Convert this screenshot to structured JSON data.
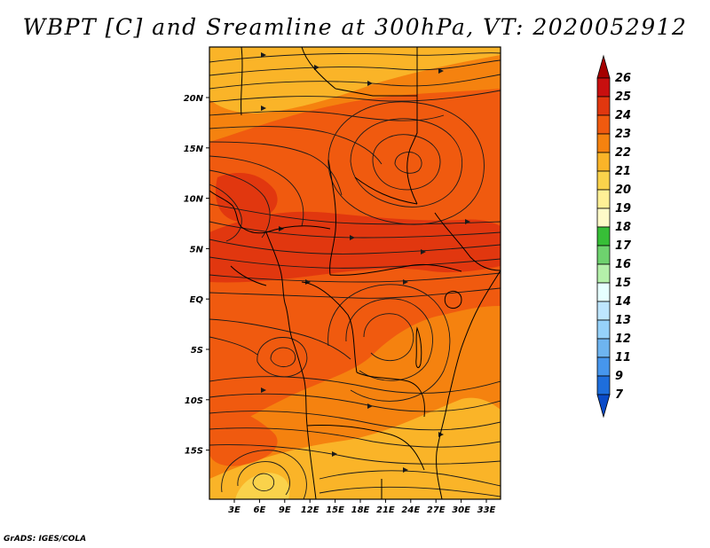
{
  "title": "WBPT [C] and Sreamline at 300hPa, VT: 2020052912",
  "credit": "GrADS: IGES/COLA",
  "lat_ticks": [
    "20N",
    "15N",
    "10N",
    "5N",
    "EQ",
    "5S",
    "10S",
    "15S"
  ],
  "lon_ticks": [
    "3E",
    "6E",
    "9E",
    "12E",
    "15E",
    "18E",
    "21E",
    "24E",
    "27E",
    "30E",
    "33E"
  ],
  "colorbar": {
    "labels": [
      "26",
      "25",
      "24",
      "23",
      "22",
      "21",
      "20",
      "19",
      "18",
      "17",
      "16",
      "15",
      "14",
      "13",
      "12",
      "11",
      "9",
      "7"
    ],
    "colors": [
      "#a50000",
      "#c80f0f",
      "#e1370f",
      "#f05a0f",
      "#f5820f",
      "#fab428",
      "#fad24b",
      "#fff096",
      "#fffac8",
      "#37be37",
      "#6ed26e",
      "#b4f0aa",
      "#e6ffff",
      "#bee6ff",
      "#96d2fa",
      "#6eb4f0",
      "#4696ed",
      "#1e6edc",
      "#0a4bc8"
    ]
  },
  "map": {
    "extent": {
      "lon_min": 0,
      "lon_max": 35,
      "lat_min": -20,
      "lat_max": 25
    },
    "palette": {
      "deep": "#e1370f",
      "strong": "#f05a0f",
      "mid": "#f5820f",
      "light": "#fab428",
      "pale": "#fad24b"
    }
  }
}
